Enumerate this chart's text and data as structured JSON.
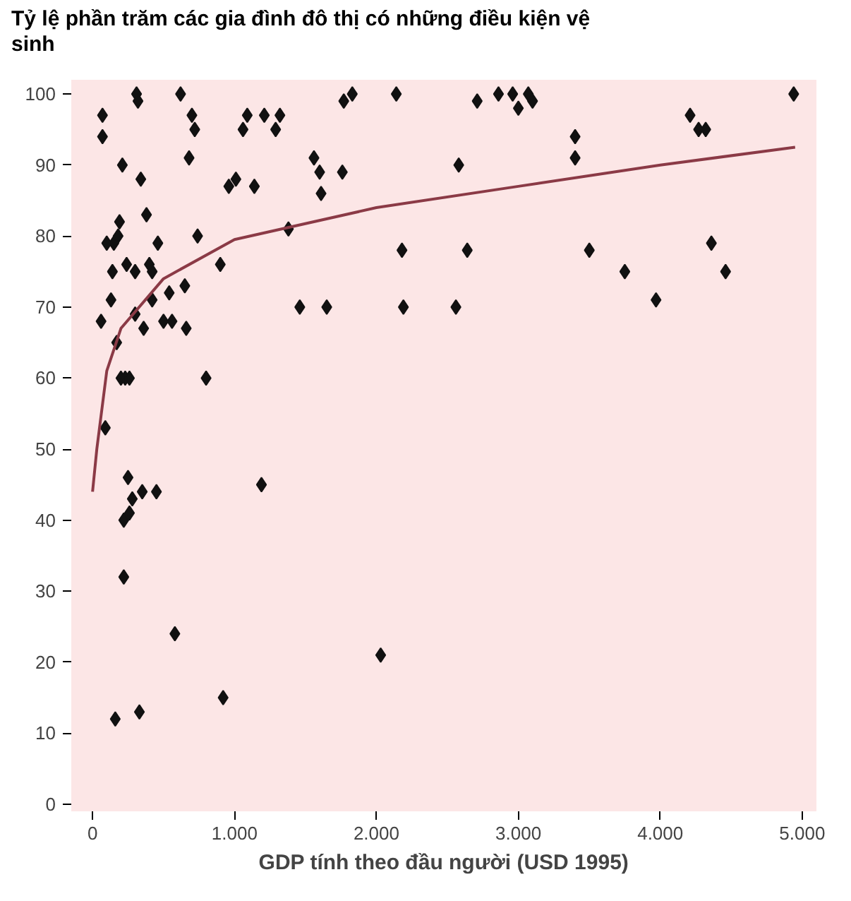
{
  "chart_data": {
    "type": "scatter",
    "title": "Tỷ lệ phần trăm các gia đình đô thị có những điều kiện vệ sinh",
    "xlabel": "GDP tính theo đầu người (USD 1995)",
    "xlim": [
      -150,
      5100
    ],
    "ylim": [
      -1,
      102
    ],
    "xticks": [
      {
        "value": 0,
        "label": "0"
      },
      {
        "value": 1000,
        "label": "1.000"
      },
      {
        "value": 2000,
        "label": "2.000"
      },
      {
        "value": 3000,
        "label": "3.000"
      },
      {
        "value": 4000,
        "label": "4.000"
      },
      {
        "value": 5000,
        "label": "5.000"
      }
    ],
    "yticks": [
      0,
      10,
      20,
      30,
      40,
      50,
      60,
      70,
      80,
      90,
      100
    ],
    "grid": false,
    "marker": "diamond",
    "series": [
      {
        "color": "#111111",
        "x": [
          60,
          70,
          70,
          90,
          100,
          130,
          140,
          150,
          160,
          170,
          180,
          190,
          200,
          210,
          220,
          220,
          230,
          240,
          250,
          260,
          260,
          280,
          300,
          300,
          310,
          320,
          330,
          340,
          350,
          360,
          380,
          400,
          420,
          420,
          450,
          460,
          500,
          540,
          560,
          580,
          620,
          650,
          660,
          680,
          700,
          720,
          740,
          800,
          900,
          920,
          960,
          1010,
          1060,
          1090,
          1140,
          1190,
          1210,
          1290,
          1320,
          1380,
          1460,
          1560,
          1600,
          1610,
          1650,
          1760,
          1770,
          1830,
          2030,
          2140,
          2180,
          2190,
          2560,
          2580,
          2640,
          2710,
          2860,
          2960,
          3000,
          3070,
          3100,
          3400,
          3400,
          3500,
          3750,
          3970,
          4210,
          4270,
          4320,
          4360,
          4460,
          4940
        ],
        "values": [
          68,
          97,
          94,
          53,
          79,
          71,
          75,
          79,
          12,
          65,
          80,
          82,
          60,
          90,
          32,
          40,
          60,
          76,
          46,
          41,
          60,
          43,
          69,
          75,
          100,
          99,
          13,
          88,
          44,
          67,
          83,
          76,
          75,
          71,
          44,
          79,
          68,
          72,
          68,
          24,
          100,
          73,
          67,
          91,
          97,
          95,
          80,
          60,
          76,
          15,
          87,
          88,
          95,
          97,
          87,
          45,
          97,
          95,
          97,
          81,
          70,
          91,
          89,
          86,
          70,
          89,
          99,
          100,
          21,
          100,
          78,
          70,
          70,
          90,
          78,
          99,
          100,
          100,
          98,
          100,
          99,
          94,
          91,
          78,
          75,
          71,
          97,
          95,
          95,
          79,
          75,
          100
        ]
      },
      {
        "type": "line",
        "marker": "none",
        "color": "#8b3a46",
        "x": [
          0,
          30,
          100,
          200,
          500,
          1000,
          2000,
          3000,
          4000,
          4950
        ],
        "values": [
          44,
          50,
          61,
          67,
          74,
          79.5,
          84,
          87,
          90,
          92.5
        ]
      }
    ]
  }
}
